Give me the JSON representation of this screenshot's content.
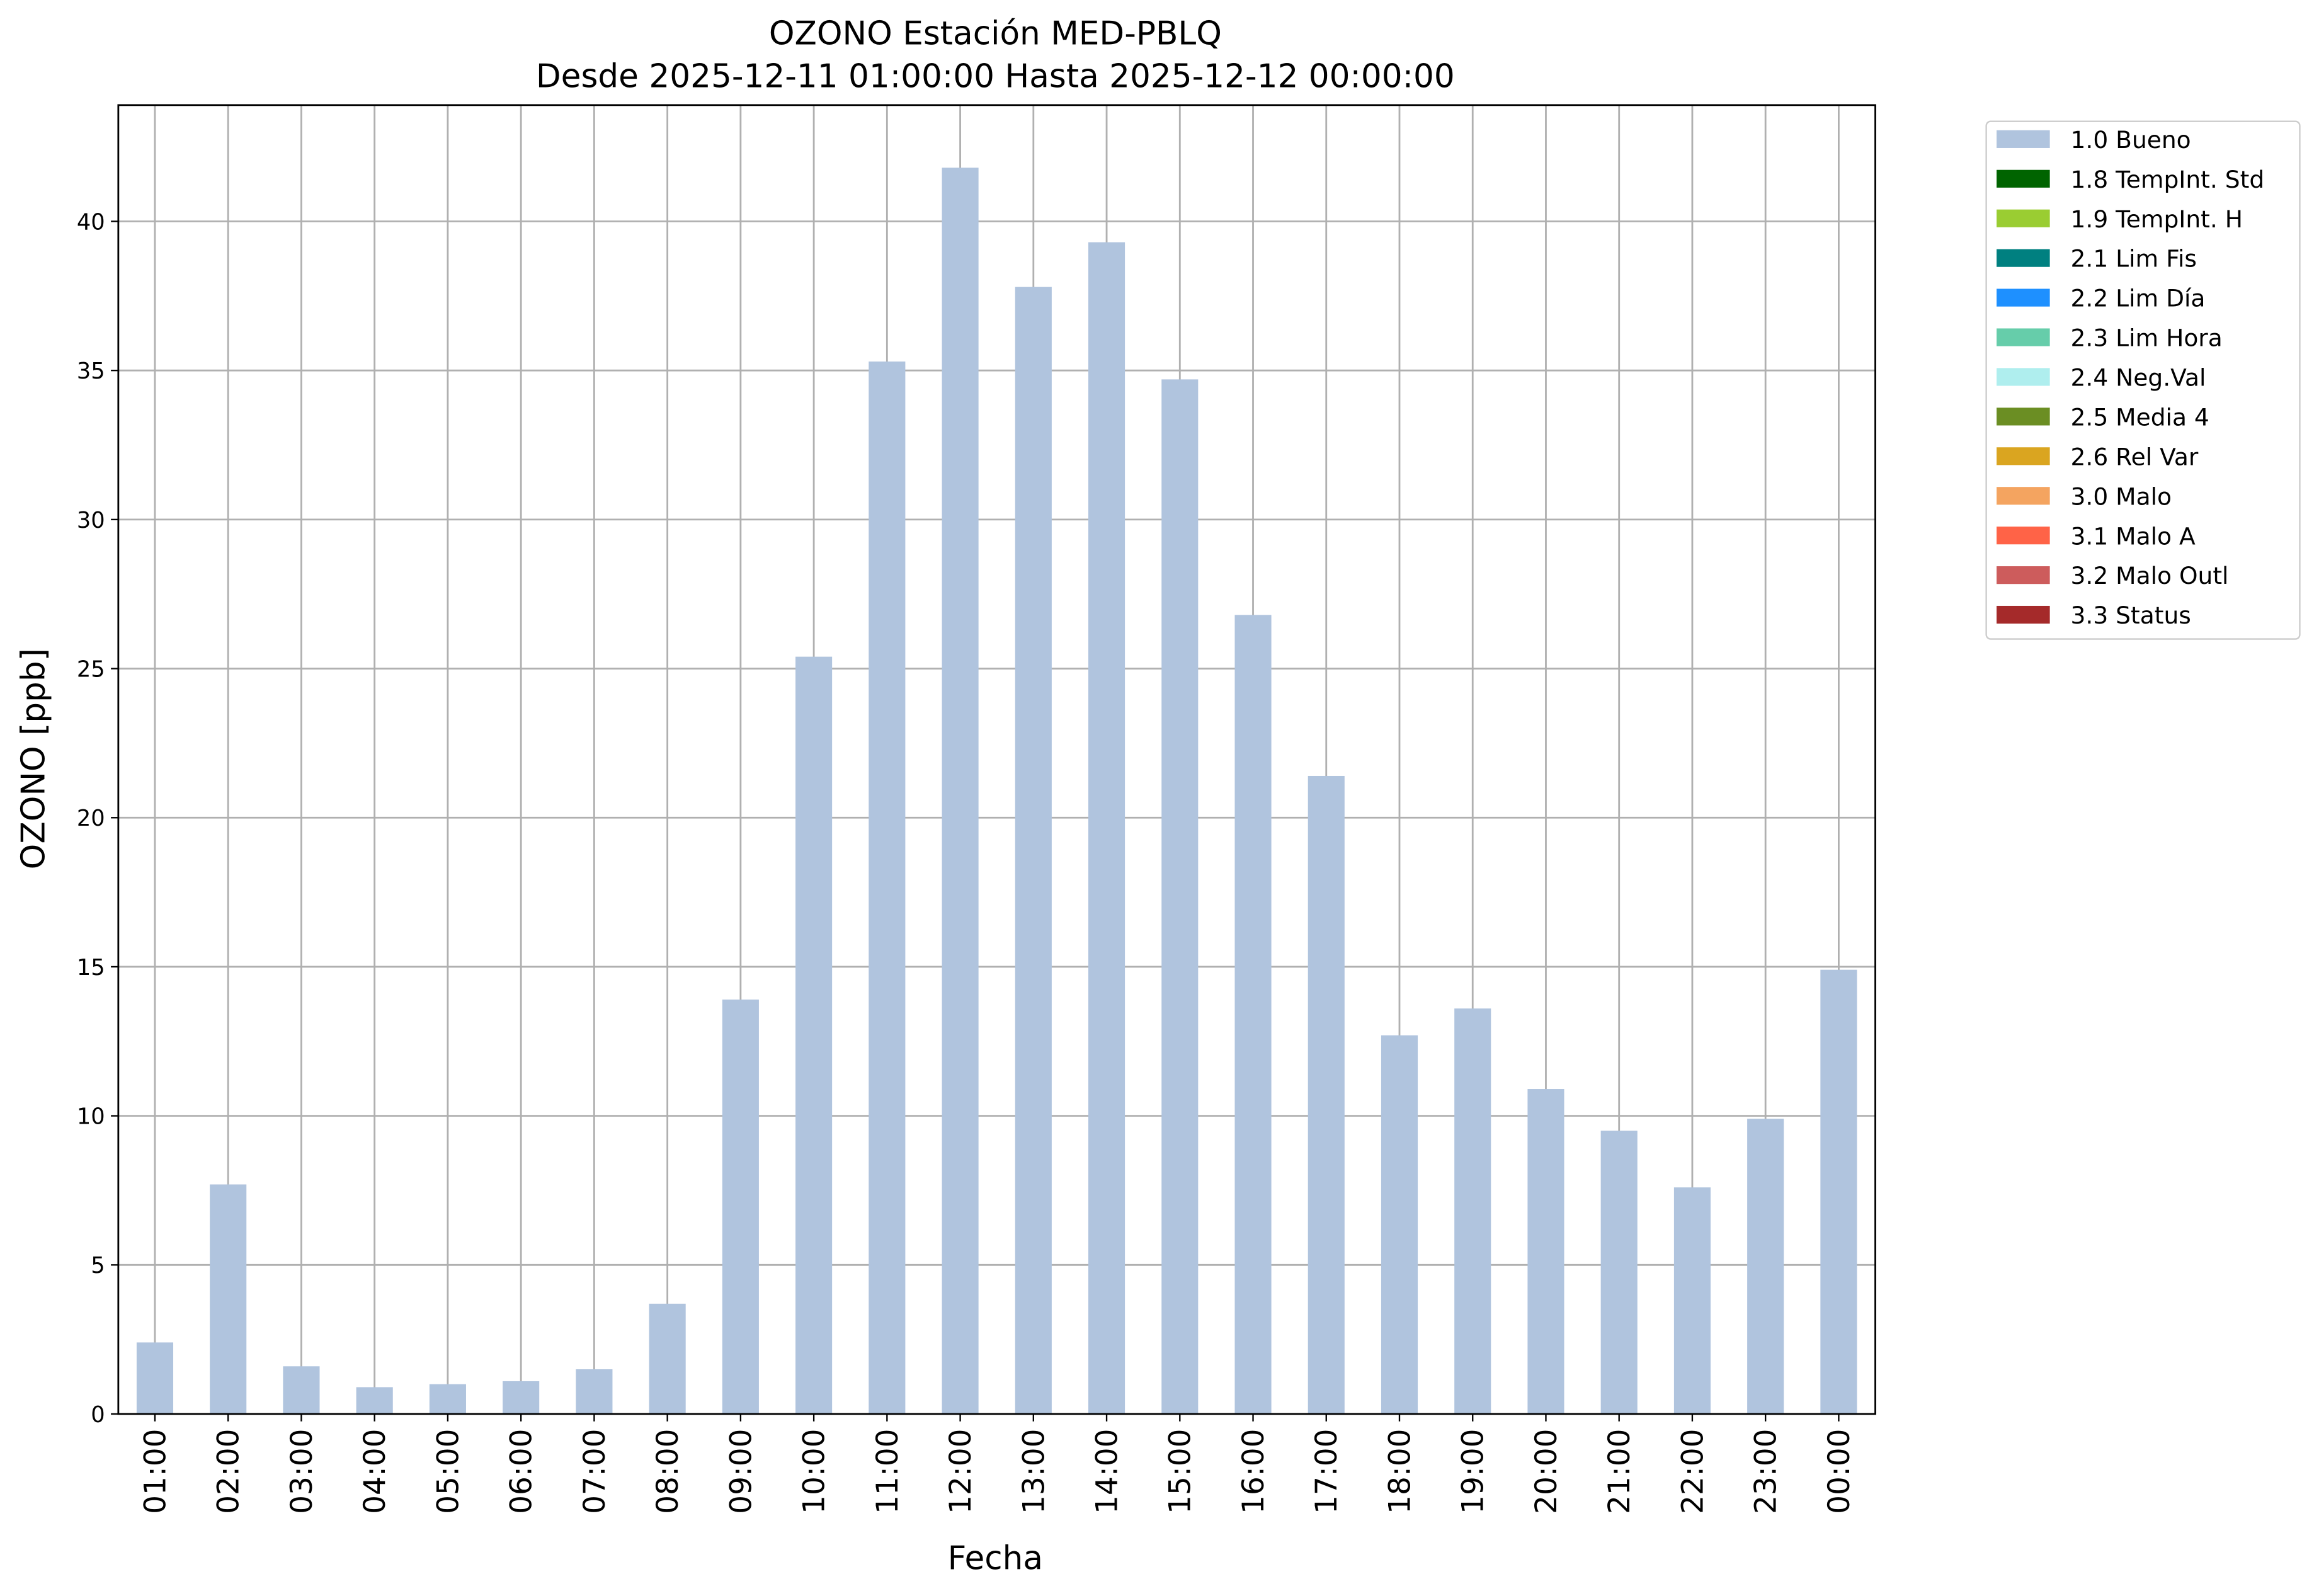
{
  "chart_data": {
    "type": "bar",
    "title": "OZONO Estación MED-PBLQ",
    "subtitle": "Desde 2025-12-11 01:00:00 Hasta 2025-12-12 00:00:00",
    "x_label": "Fecha",
    "y_label": "OZONO [ppb]",
    "categories": [
      "01:00",
      "02:00",
      "03:00",
      "04:00",
      "05:00",
      "06:00",
      "07:00",
      "08:00",
      "09:00",
      "10:00",
      "11:00",
      "12:00",
      "13:00",
      "14:00",
      "15:00",
      "16:00",
      "17:00",
      "18:00",
      "19:00",
      "20:00",
      "21:00",
      "22:00",
      "23:00",
      "00:00"
    ],
    "series": [
      {
        "name": "1.0 Bueno",
        "color": "#b0c4de",
        "values": [
          2.4,
          7.7,
          1.6,
          0.9,
          1.0,
          1.1,
          1.5,
          3.7,
          13.9,
          25.4,
          35.3,
          41.8,
          37.8,
          39.3,
          34.7,
          26.8,
          21.4,
          12.7,
          13.6,
          10.9,
          9.5,
          7.6,
          9.9,
          14.9
        ]
      },
      {
        "name": "1.8 TempInt. Std",
        "color": "#006400",
        "values": [
          null,
          null,
          null,
          null,
          null,
          null,
          null,
          null,
          null,
          null,
          null,
          null,
          null,
          null,
          null,
          null,
          null,
          null,
          null,
          null,
          null,
          null,
          null,
          null
        ]
      },
      {
        "name": "1.9 TempInt. H",
        "color": "#9acd32",
        "values": [
          null,
          null,
          null,
          null,
          null,
          null,
          null,
          null,
          null,
          null,
          null,
          null,
          null,
          null,
          null,
          null,
          null,
          null,
          null,
          null,
          null,
          null,
          null,
          null
        ]
      },
      {
        "name": "2.1 Lim Fis",
        "color": "#008080",
        "values": [
          null,
          null,
          null,
          null,
          null,
          null,
          null,
          null,
          null,
          null,
          null,
          null,
          null,
          null,
          null,
          null,
          null,
          null,
          null,
          null,
          null,
          null,
          null,
          null
        ]
      },
      {
        "name": "2.2 Lim Día",
        "color": "#1e90ff",
        "values": [
          null,
          null,
          null,
          null,
          null,
          null,
          null,
          null,
          null,
          null,
          null,
          null,
          null,
          null,
          null,
          null,
          null,
          null,
          null,
          null,
          null,
          null,
          null,
          null
        ]
      },
      {
        "name": "2.3 Lim Hora",
        "color": "#66cdaa",
        "values": [
          null,
          null,
          null,
          null,
          null,
          null,
          null,
          null,
          null,
          null,
          null,
          null,
          null,
          null,
          null,
          null,
          null,
          null,
          null,
          null,
          null,
          null,
          null,
          null
        ]
      },
      {
        "name": "2.4 Neg.Val",
        "color": "#afeeee",
        "values": [
          null,
          null,
          null,
          null,
          null,
          null,
          null,
          null,
          null,
          null,
          null,
          null,
          null,
          null,
          null,
          null,
          null,
          null,
          null,
          null,
          null,
          null,
          null,
          null
        ]
      },
      {
        "name": "2.5 Media 4",
        "color": "#6b8e23",
        "values": [
          null,
          null,
          null,
          null,
          null,
          null,
          null,
          null,
          null,
          null,
          null,
          null,
          null,
          null,
          null,
          null,
          null,
          null,
          null,
          null,
          null,
          null,
          null,
          null
        ]
      },
      {
        "name": "2.6 Rel Var",
        "color": "#daa520",
        "values": [
          null,
          null,
          null,
          null,
          null,
          null,
          null,
          null,
          null,
          null,
          null,
          null,
          null,
          null,
          null,
          null,
          null,
          null,
          null,
          null,
          null,
          null,
          null,
          null
        ]
      },
      {
        "name": "3.0 Malo",
        "color": "#f4a460",
        "values": [
          null,
          null,
          null,
          null,
          null,
          null,
          null,
          null,
          null,
          null,
          null,
          null,
          null,
          null,
          null,
          null,
          null,
          null,
          null,
          null,
          null,
          null,
          null,
          null
        ]
      },
      {
        "name": "3.1 Malo A",
        "color": "#ff6347",
        "values": [
          null,
          null,
          null,
          null,
          null,
          null,
          null,
          null,
          null,
          null,
          null,
          null,
          null,
          null,
          null,
          null,
          null,
          null,
          null,
          null,
          null,
          null,
          null,
          null
        ]
      },
      {
        "name": "3.2 Malo Outl",
        "color": "#cd5c5c",
        "values": [
          null,
          null,
          null,
          null,
          null,
          null,
          null,
          null,
          null,
          null,
          null,
          null,
          null,
          null,
          null,
          null,
          null,
          null,
          null,
          null,
          null,
          null,
          null,
          null
        ]
      },
      {
        "name": "3.3 Status",
        "color": "#a52a2a",
        "values": [
          null,
          null,
          null,
          null,
          null,
          null,
          null,
          null,
          null,
          null,
          null,
          null,
          null,
          null,
          null,
          null,
          null,
          null,
          null,
          null,
          null,
          null,
          null,
          null
        ]
      }
    ],
    "stacked": true,
    "ylim": [
      0,
      43.9
    ],
    "yticks": [
      0,
      5,
      10,
      15,
      20,
      25,
      30,
      35,
      40
    ],
    "grid": true,
    "legend": "outside upper right"
  }
}
